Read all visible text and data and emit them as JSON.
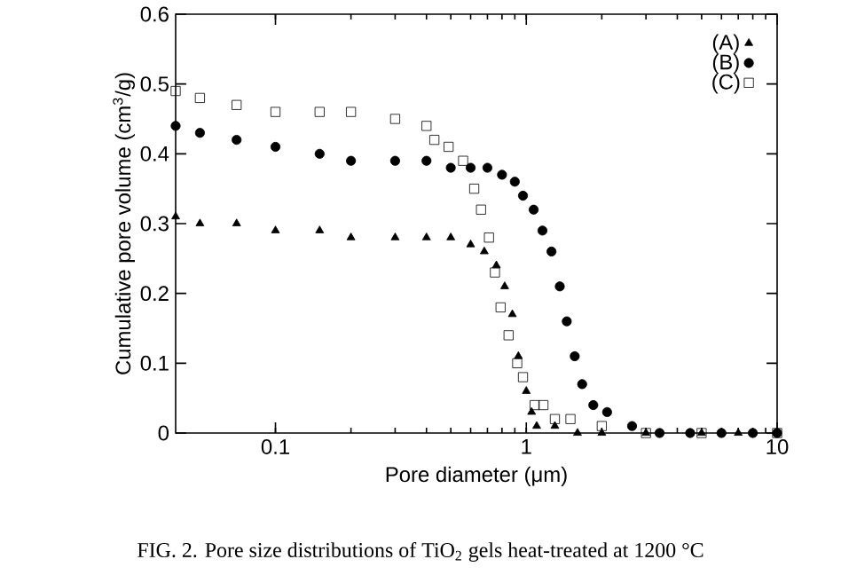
{
  "chart_data": {
    "type": "scatter",
    "xlabel": "Pore diameter (μm)",
    "ylabel": "Cumulative pore volume (cm$^{3}$/g)",
    "log": "x",
    "xlim": [
      0.04,
      10
    ],
    "ylim": [
      0,
      0.6
    ],
    "xticks": [
      0.1,
      1,
      10
    ],
    "yticks": [
      0,
      0.1,
      0.2,
      0.3,
      0.4,
      0.5,
      0.6
    ],
    "legend": "top right",
    "annotations": [
      "FIG. 2. Pore size distributions of TiO$_{2}$ gels heat-treated at 1200 °C"
    ],
    "series": [
      {
        "name": "(A)",
        "color": "#000000",
        "marker": "triangle",
        "x": [
          0.04,
          0.05,
          0.07,
          0.1,
          0.15,
          0.2,
          0.3,
          0.4,
          0.5,
          0.6,
          0.68,
          0.76,
          0.82,
          0.88,
          0.93,
          1.0,
          1.05,
          1.1,
          1.3,
          1.6,
          2,
          3,
          5,
          7
        ],
        "values": [
          0.31,
          0.3,
          0.3,
          0.29,
          0.29,
          0.28,
          0.28,
          0.28,
          0.28,
          0.27,
          0.26,
          0.24,
          0.21,
          0.17,
          0.11,
          0.06,
          0.03,
          0.01,
          0.01,
          0,
          0,
          0,
          0,
          0
        ]
      },
      {
        "name": "(B)",
        "color": "#000000",
        "marker": "circle",
        "x": [
          0.04,
          0.05,
          0.07,
          0.1,
          0.15,
          0.2,
          0.3,
          0.4,
          0.5,
          0.6,
          0.7,
          0.8,
          0.9,
          0.97,
          1.07,
          1.16,
          1.26,
          1.36,
          1.45,
          1.56,
          1.67,
          1.85,
          2.1,
          2.64,
          3.4,
          4.5,
          6,
          8,
          10
        ],
        "values": [
          0.44,
          0.43,
          0.42,
          0.41,
          0.4,
          0.39,
          0.39,
          0.39,
          0.38,
          0.38,
          0.38,
          0.37,
          0.36,
          0.34,
          0.32,
          0.29,
          0.26,
          0.21,
          0.16,
          0.11,
          0.07,
          0.04,
          0.03,
          0.01,
          0,
          0,
          0,
          0,
          0
        ]
      },
      {
        "name": "(C)",
        "color": "#000000",
        "marker": "square",
        "x": [
          0.04,
          0.05,
          0.07,
          0.1,
          0.15,
          0.2,
          0.3,
          0.4,
          0.43,
          0.49,
          0.56,
          0.62,
          0.66,
          0.71,
          0.75,
          0.79,
          0.85,
          0.92,
          0.97,
          1.08,
          1.17,
          1.3,
          1.5,
          2,
          3,
          5,
          10
        ],
        "values": [
          0.49,
          0.48,
          0.47,
          0.46,
          0.46,
          0.46,
          0.45,
          0.44,
          0.42,
          0.41,
          0.39,
          0.35,
          0.32,
          0.28,
          0.23,
          0.18,
          0.14,
          0.1,
          0.08,
          0.04,
          0.04,
          0.02,
          0.02,
          0.01,
          0,
          0,
          0
        ]
      }
    ]
  }
}
